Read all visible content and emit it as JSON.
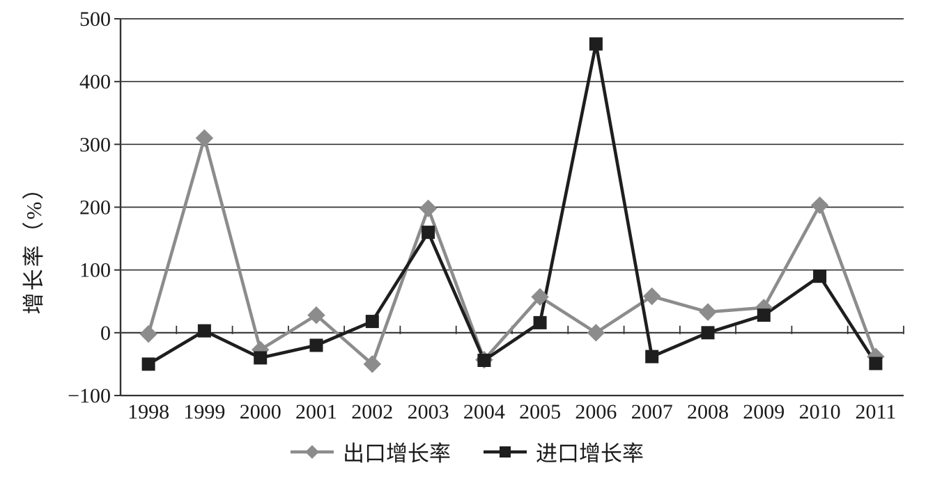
{
  "chart_data": {
    "type": "line",
    "title": "",
    "ylabel": "增长率（%）",
    "xlabel": "",
    "x": [
      "1998",
      "1999",
      "2000",
      "2001",
      "2002",
      "2003",
      "2004",
      "2005",
      "2006",
      "2007",
      "2008",
      "2009",
      "2010",
      "2011"
    ],
    "series": [
      {
        "name": "出口增长率",
        "marker": "diamond",
        "color": "#8c8c8c",
        "values": [
          -2,
          310,
          -27,
          28,
          -50,
          198,
          -43,
          57,
          0,
          58,
          33,
          40,
          203,
          -38
        ]
      },
      {
        "name": "进口增长率",
        "marker": "square",
        "color": "#1e1e1e",
        "values": [
          -50,
          3,
          -40,
          -20,
          18,
          160,
          -44,
          16,
          460,
          -38,
          0,
          28,
          90,
          -49
        ]
      }
    ],
    "ylim": [
      -100,
      500
    ],
    "ytick_step": 100,
    "ytick_labels": [
      "500",
      "400",
      "300",
      "200",
      "100",
      "0",
      "−100"
    ],
    "grid": true,
    "legend_position": "bottom",
    "axis_color": "#333333",
    "text_color": "#1a1a1a"
  }
}
